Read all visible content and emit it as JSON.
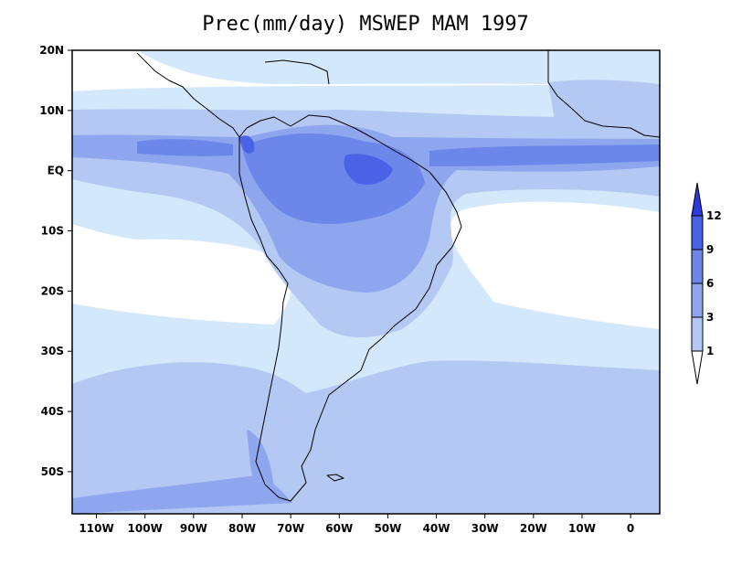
{
  "title": "Prec(mm/day) MSWEP MAM 1997",
  "map": {
    "variable": "Precipitation",
    "units": "mm/day",
    "dataset": "MSWEP",
    "season": "MAM",
    "year": "1997",
    "lon_range": [
      -115,
      6
    ],
    "lat_range": [
      -57,
      20
    ],
    "lat_ticks": [
      {
        "value": 20,
        "label": "20N"
      },
      {
        "value": 10,
        "label": "10N"
      },
      {
        "value": 0,
        "label": "EQ"
      },
      {
        "value": -10,
        "label": "10S"
      },
      {
        "value": -20,
        "label": "20S"
      },
      {
        "value": -30,
        "label": "30S"
      },
      {
        "value": -40,
        "label": "40S"
      },
      {
        "value": -50,
        "label": "50S"
      }
    ],
    "lon_ticks": [
      {
        "value": -110,
        "label": "110W"
      },
      {
        "value": -100,
        "label": "100W"
      },
      {
        "value": -90,
        "label": "90W"
      },
      {
        "value": -80,
        "label": "80W"
      },
      {
        "value": -70,
        "label": "70W"
      },
      {
        "value": -60,
        "label": "60W"
      },
      {
        "value": -50,
        "label": "50W"
      },
      {
        "value": -40,
        "label": "40W"
      },
      {
        "value": -30,
        "label": "30W"
      },
      {
        "value": -20,
        "label": "20W"
      },
      {
        "value": -10,
        "label": "10W"
      },
      {
        "value": 0,
        "label": "0"
      }
    ]
  },
  "colorbar": {
    "levels": [
      "1",
      "3",
      "6",
      "9",
      "12"
    ],
    "colors": [
      "#ffffff",
      "#d4e8fc",
      "#b4c8f4",
      "#8ea6ee",
      "#6c86ea",
      "#4a62e6",
      "#2c3ae0"
    ]
  },
  "colors": {
    "coast": "#000000",
    "background": "#ffffff"
  }
}
